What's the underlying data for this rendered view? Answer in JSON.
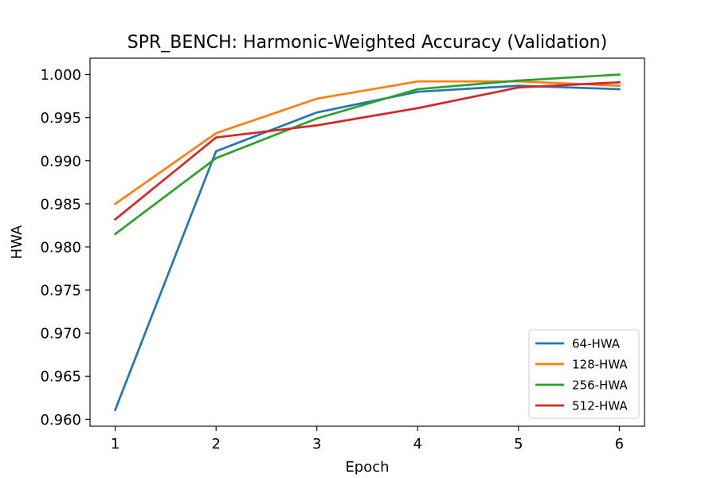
{
  "chart_data": {
    "type": "line",
    "title": "SPR_BENCH: Harmonic-Weighted Accuracy (Validation)",
    "xlabel": "Epoch",
    "ylabel": "HWA",
    "x": [
      1,
      2,
      3,
      4,
      5,
      6
    ],
    "xlim": [
      0.75,
      6.25
    ],
    "ylim": [
      0.9592,
      1.0019
    ],
    "xticks": [
      "1",
      "2",
      "3",
      "4",
      "5",
      "6"
    ],
    "yticks": [
      "0.960",
      "0.965",
      "0.970",
      "0.975",
      "0.980",
      "0.985",
      "0.990",
      "0.995",
      "1.000"
    ],
    "grid": false,
    "legend_position": "lower-right",
    "series": [
      {
        "name": "64-HWA",
        "color": "#1f77b4",
        "values": [
          0.9611,
          0.9911,
          0.9956,
          0.998,
          0.9987,
          0.9983
        ]
      },
      {
        "name": "128-HWA",
        "color": "#ff7f0e",
        "values": [
          0.985,
          0.9932,
          0.9972,
          0.9992,
          0.9992,
          0.9987
        ]
      },
      {
        "name": "256-HWA",
        "color": "#2ca02c",
        "values": [
          0.9815,
          0.9903,
          0.9949,
          0.9983,
          0.9993,
          1.0
        ]
      },
      {
        "name": "512-HWA",
        "color": "#d62728",
        "values": [
          0.9832,
          0.9927,
          0.9941,
          0.9961,
          0.9985,
          0.9991
        ]
      }
    ]
  }
}
